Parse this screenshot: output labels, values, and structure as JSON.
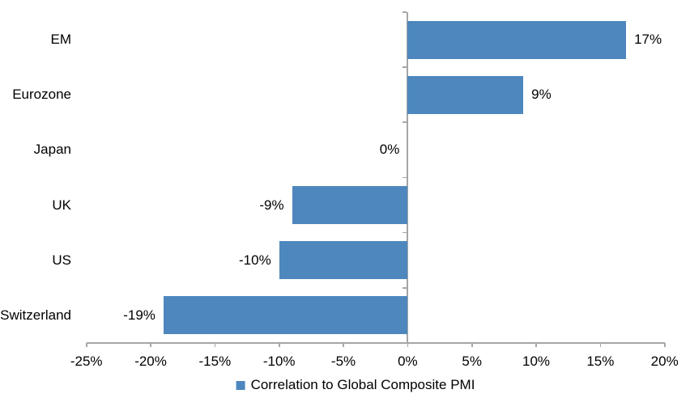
{
  "chart_data": {
    "type": "bar",
    "orientation": "horizontal",
    "categories": [
      "EM",
      "Eurozone",
      "Japan",
      "UK",
      "US",
      "Switzerland"
    ],
    "series": [
      {
        "name": "Correlation to Global Composite PMI",
        "values": [
          17,
          9,
          0,
          -9,
          -10,
          -19
        ]
      }
    ],
    "value_labels": [
      "17%",
      "9%",
      "0%",
      "-9%",
      "-10%",
      "-19%"
    ],
    "x_tick_values": [
      -25,
      -20,
      -15,
      -10,
      -5,
      0,
      5,
      10,
      15,
      20
    ],
    "x_tick_labels": [
      "-25%",
      "-20%",
      "-15%",
      "-10%",
      "-5%",
      "0%",
      "5%",
      "10%",
      "15%",
      "20%"
    ],
    "xlim": [
      -25,
      20
    ],
    "grid": false,
    "legend_position": "bottom-center",
    "colors": {
      "bar": "#4E87BE",
      "axis": "#A6A6A6",
      "text": "#000000",
      "background": "#FFFFFF"
    }
  }
}
